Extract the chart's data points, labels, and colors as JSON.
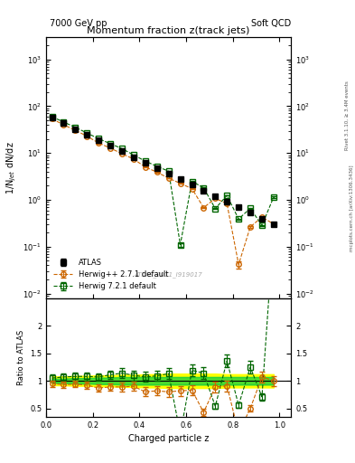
{
  "title_left": "7000 GeV pp",
  "title_right": "Soft QCD",
  "plot_title": "Momentum fraction z(track jets)",
  "ylabel_main": "1/N$_{jet}$ dN/dz",
  "ylabel_ratio": "Ratio to ATLAS",
  "xlabel": "Charged particle z",
  "watermark": "ATLAS_2011_I919017",
  "right_label_top": "Rivet 3.1.10, ≥ 3.4M events",
  "right_label_bottom": "mcplots.cern.ch [arXiv:1306.3436]",
  "atlas_x": [
    0.025,
    0.075,
    0.125,
    0.175,
    0.225,
    0.275,
    0.325,
    0.375,
    0.425,
    0.475,
    0.525,
    0.575,
    0.625,
    0.675,
    0.725,
    0.775,
    0.825,
    0.875,
    0.925,
    0.975
  ],
  "atlas_y": [
    55.0,
    30.0,
    18.0,
    12.0,
    7.5,
    4.5,
    2.8,
    2.0,
    1.5,
    1.1,
    0.75,
    0.55,
    0.42,
    0.35,
    0.28,
    0.22,
    0.18,
    0.16,
    0.14,
    0.12
  ],
  "atlas_yerr": [
    2.0,
    1.2,
    0.7,
    0.5,
    0.3,
    0.2,
    0.12,
    0.08,
    0.06,
    0.05,
    0.04,
    0.03,
    0.025,
    0.02,
    0.015,
    0.012,
    0.01,
    0.009,
    0.008,
    0.007
  ],
  "hpp_x": [
    0.025,
    0.075,
    0.125,
    0.175,
    0.225,
    0.275,
    0.325,
    0.375,
    0.425,
    0.475,
    0.525,
    0.575,
    0.625,
    0.675,
    0.725,
    0.775,
    0.825,
    0.875,
    0.925,
    0.975
  ],
  "hpp_y": [
    52.0,
    28.0,
    17.0,
    11.0,
    6.5,
    4.0,
    2.5,
    1.8,
    1.2,
    0.9,
    0.6,
    0.45,
    0.35,
    0.15,
    0.25,
    0.2,
    0.01,
    0.08,
    0.15,
    0.12
  ],
  "hpp_yerr": [
    3.0,
    1.5,
    0.9,
    0.6,
    0.4,
    0.25,
    0.18,
    0.12,
    0.09,
    0.07,
    0.05,
    0.04,
    0.03,
    0.02,
    0.02,
    0.015,
    0.008,
    0.007,
    0.01,
    0.008
  ],
  "h721_x": [
    0.025,
    0.075,
    0.125,
    0.175,
    0.225,
    0.275,
    0.325,
    0.375,
    0.425,
    0.475,
    0.525,
    0.575,
    0.625,
    0.675,
    0.725,
    0.775,
    0.825,
    0.875,
    0.925,
    0.975
  ],
  "h721_y": [
    58.0,
    32.0,
    19.5,
    13.0,
    8.0,
    5.0,
    3.2,
    2.2,
    1.6,
    1.2,
    0.85,
    0.02,
    0.5,
    0.4,
    0.15,
    0.3,
    0.1,
    0.2,
    0.1,
    0.45
  ],
  "h721_yerr": [
    3.5,
    1.8,
    1.0,
    0.7,
    0.45,
    0.28,
    0.2,
    0.14,
    0.1,
    0.08,
    0.06,
    0.01,
    0.04,
    0.03,
    0.01,
    0.02,
    0.008,
    0.015,
    0.008,
    0.035
  ],
  "hpp_ratio": [
    0.95,
    0.93,
    0.94,
    0.92,
    0.87,
    0.89,
    0.89,
    0.9,
    0.8,
    0.82,
    0.8,
    0.82,
    0.83,
    0.43,
    0.89,
    0.91,
    0.06,
    0.5,
    1.07,
    1.0
  ],
  "hpp_ratio_err": [
    0.06,
    0.06,
    0.06,
    0.06,
    0.07,
    0.07,
    0.08,
    0.08,
    0.08,
    0.08,
    0.09,
    0.09,
    0.09,
    0.07,
    0.1,
    0.1,
    0.05,
    0.06,
    0.1,
    0.09
  ],
  "h721_ratio": [
    1.05,
    1.07,
    1.08,
    1.08,
    1.07,
    1.11,
    1.14,
    1.1,
    1.07,
    1.09,
    1.13,
    0.04,
    1.19,
    1.14,
    0.54,
    1.36,
    0.56,
    1.25,
    0.71,
    3.75
  ],
  "h721_ratio_err": [
    0.07,
    0.07,
    0.07,
    0.07,
    0.07,
    0.08,
    0.09,
    0.09,
    0.09,
    0.09,
    0.1,
    0.02,
    0.1,
    0.1,
    0.05,
    0.12,
    0.05,
    0.12,
    0.07,
    0.3
  ],
  "band_yellow_lo": [
    0.92,
    0.92,
    0.91,
    0.91,
    0.9,
    0.9,
    0.89,
    0.89,
    0.88,
    0.88,
    0.87,
    0.87,
    0.87,
    0.87,
    0.87,
    0.88,
    0.88,
    0.88,
    0.88,
    0.88
  ],
  "band_yellow_hi": [
    1.08,
    1.08,
    1.09,
    1.09,
    1.1,
    1.1,
    1.11,
    1.11,
    1.12,
    1.12,
    1.13,
    1.13,
    1.13,
    1.13,
    1.13,
    1.12,
    1.12,
    1.12,
    1.12,
    1.12
  ],
  "band_green_lo": [
    0.96,
    0.96,
    0.95,
    0.95,
    0.94,
    0.94,
    0.93,
    0.93,
    0.93,
    0.93,
    0.93,
    0.93,
    0.93,
    0.93,
    0.93,
    0.93,
    0.93,
    0.93,
    0.93,
    0.93
  ],
  "band_green_hi": [
    1.04,
    1.04,
    1.05,
    1.05,
    1.06,
    1.06,
    1.07,
    1.07,
    1.07,
    1.07,
    1.07,
    1.07,
    1.07,
    1.07,
    1.07,
    1.07,
    1.07,
    1.07,
    1.07,
    1.07
  ],
  "atlas_color": "#000000",
  "hpp_color": "#cc6600",
  "h721_color": "#006600",
  "yellow_color": "#ffff00",
  "green_color": "#00cc44",
  "ylim_main": [
    0.008,
    3000
  ],
  "ylim_ratio": [
    0.35,
    2.5
  ],
  "xlim": [
    0.0,
    1.05
  ]
}
